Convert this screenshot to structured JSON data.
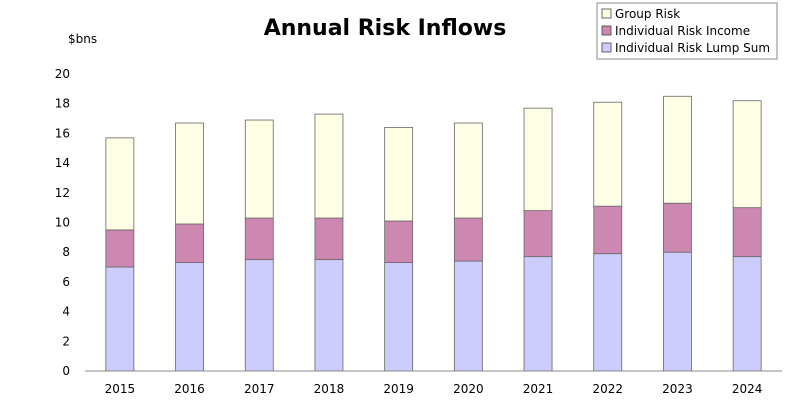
{
  "chart_data": {
    "type": "bar",
    "stacked": true,
    "title": "Annual Risk Inflows",
    "ylabel": "$bns",
    "xlabel": "",
    "categories": [
      "2015",
      "2016",
      "2017",
      "2018",
      "2019",
      "2020",
      "2021",
      "2022",
      "2023",
      "2024"
    ],
    "ylim": [
      0,
      20
    ],
    "yticks": [
      "0",
      "2",
      "4",
      "6",
      "8",
      "10",
      "12",
      "14",
      "16",
      "18",
      "20"
    ],
    "grid": false,
    "legend_position": "top-right",
    "series": [
      {
        "name": "Individual Risk Lump Sum",
        "color": "#ccccff",
        "values": [
          7.0,
          7.3,
          7.5,
          7.5,
          7.3,
          7.4,
          7.7,
          7.9,
          8.0,
          7.7
        ]
      },
      {
        "name": "Individual Risk Income",
        "color": "#cc88b0",
        "values": [
          2.5,
          2.6,
          2.8,
          2.8,
          2.8,
          2.9,
          3.1,
          3.2,
          3.3,
          3.3
        ]
      },
      {
        "name": "Group Risk",
        "color": "#ffffe6",
        "values": [
          6.2,
          6.8,
          6.6,
          7.0,
          6.3,
          6.4,
          6.9,
          7.0,
          7.2,
          7.2
        ]
      }
    ],
    "legend_order": [
      "Group Risk",
      "Individual Risk Income",
      "Individual Risk Lump Sum"
    ]
  }
}
